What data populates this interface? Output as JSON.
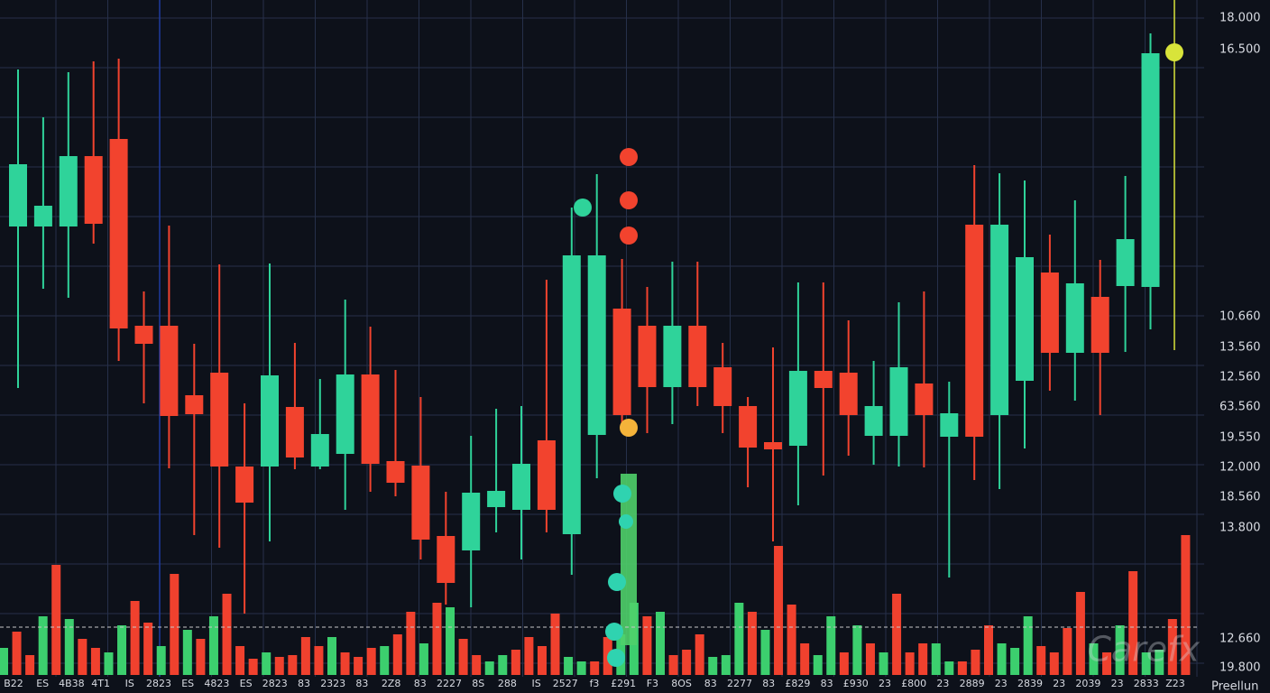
{
  "chart_data": {
    "type": "candlestick",
    "up_color": "#2fd39a",
    "down_color": "#f2432e",
    "ylim": [
      0,
      750
    ],
    "candles": {
      "open": [
        499,
        499,
        499,
        577,
        596,
        389,
        389,
        312,
        337,
        233,
        233,
        299,
        233,
        247,
        335,
        239,
        234,
        156,
        140,
        188,
        185,
        262,
        158,
        268,
        408,
        389,
        321,
        389,
        343,
        300,
        260,
        256,
        339,
        337,
        267,
        267,
        325,
        266,
        501,
        290,
        328,
        448,
        359,
        421,
        433,
        432
      ],
      "close": [
        568,
        522,
        577,
        502,
        386,
        369,
        289,
        291,
        233,
        193,
        334,
        243,
        269,
        335,
        236,
        215,
        152,
        104,
        204,
        206,
        236,
        185,
        467,
        467,
        290,
        321,
        389,
        321,
        300,
        254,
        252,
        339,
        320,
        290,
        300,
        343,
        290,
        292,
        266,
        501,
        465,
        359,
        436,
        359,
        485,
        691
      ],
      "high": [
        673,
        620,
        670,
        682,
        685,
        427,
        500,
        369,
        457,
        303,
        458,
        370,
        330,
        418,
        388,
        340,
        310,
        205,
        267,
        297,
        300,
        440,
        520,
        557,
        463,
        432,
        460,
        460,
        370,
        310,
        365,
        437,
        437,
        395,
        350,
        415,
        427,
        327,
        567,
        558,
        550,
        490,
        528,
        462,
        555,
        713
      ],
      "low": [
        320,
        430,
        420,
        480,
        350,
        303,
        231,
        157,
        143,
        70,
        150,
        230,
        230,
        185,
        205,
        200,
        130,
        80,
        77,
        160,
        130,
        160,
        113,
        220,
        275,
        270,
        280,
        300,
        270,
        210,
        150,
        190,
        223,
        245,
        235,
        233,
        232,
        110,
        218,
        208,
        253,
        317,
        306,
        290,
        360,
        385
      ]
    },
    "volume": {
      "ylim": [
        0,
        160
      ],
      "values": [
        30,
        48,
        22,
        65,
        122,
        62,
        40,
        30,
        25,
        55,
        82,
        58,
        32,
        112,
        50,
        40,
        65,
        90,
        32,
        18,
        25,
        20,
        22,
        42,
        32,
        42,
        25,
        20,
        30,
        32,
        45,
        70,
        35,
        80,
        75,
        40,
        22,
        15,
        22,
        28,
        42,
        32,
        68,
        20,
        15,
        15,
        42,
        45,
        80,
        65,
        70,
        22,
        28,
        45,
        20,
        22,
        80,
        70,
        50,
        143,
        78,
        35,
        22,
        65,
        25,
        55,
        35,
        25,
        90,
        25,
        35,
        35,
        15,
        15,
        28,
        55,
        35,
        30,
        65,
        32,
        25,
        52,
        92,
        35,
        25,
        55,
        115,
        25,
        28,
        62,
        155
      ],
      "colors": [
        "g",
        "r",
        "r",
        "g",
        "r",
        "g",
        "r",
        "r",
        "g",
        "g",
        "r",
        "r",
        "g",
        "r",
        "g",
        "r",
        "g",
        "r",
        "r",
        "r",
        "g",
        "r",
        "r",
        "r",
        "r",
        "g",
        "r",
        "r",
        "r",
        "g",
        "r",
        "r",
        "g",
        "r",
        "g",
        "r",
        "r",
        "g",
        "g",
        "r",
        "r",
        "r",
        "r",
        "g",
        "g",
        "r",
        "r",
        "g",
        "g",
        "r",
        "g",
        "r",
        "r",
        "r",
        "g",
        "g",
        "g",
        "r",
        "g",
        "r",
        "r",
        "r",
        "g",
        "g",
        "r",
        "g",
        "r",
        "g",
        "r",
        "r",
        "r",
        "g",
        "g",
        "r",
        "r",
        "r",
        "g",
        "g",
        "g",
        "r",
        "r",
        "r",
        "r",
        "g",
        "r",
        "g",
        "r",
        "g",
        "g",
        "r",
        "r"
      ]
    },
    "y_axis_labels": [
      "18.000",
      "16.500",
      "10.660",
      "13.560",
      "12.560",
      "63.560",
      "19.550",
      "12.000",
      "18.560",
      "13.800",
      "12.660",
      "19.800"
    ],
    "x_axis_labels": [
      "B22",
      "ES",
      "4B38",
      "4T1",
      "IS",
      "2823",
      "ES",
      "4823",
      "ES",
      "2823",
      "83",
      "2323",
      "83",
      "2Z8",
      "83",
      "2227",
      "8S",
      "288",
      "IS",
      "2527",
      "f3",
      "£291",
      "F3",
      "8OS",
      "83",
      "2277",
      "83",
      "£829",
      "83",
      "£930",
      "23",
      "£800",
      "23",
      "2889",
      "23",
      "2839",
      "23",
      "2039",
      "23",
      "2833",
      "Z23"
    ],
    "footer_label": "Preellun",
    "watermark": "Carefx"
  }
}
